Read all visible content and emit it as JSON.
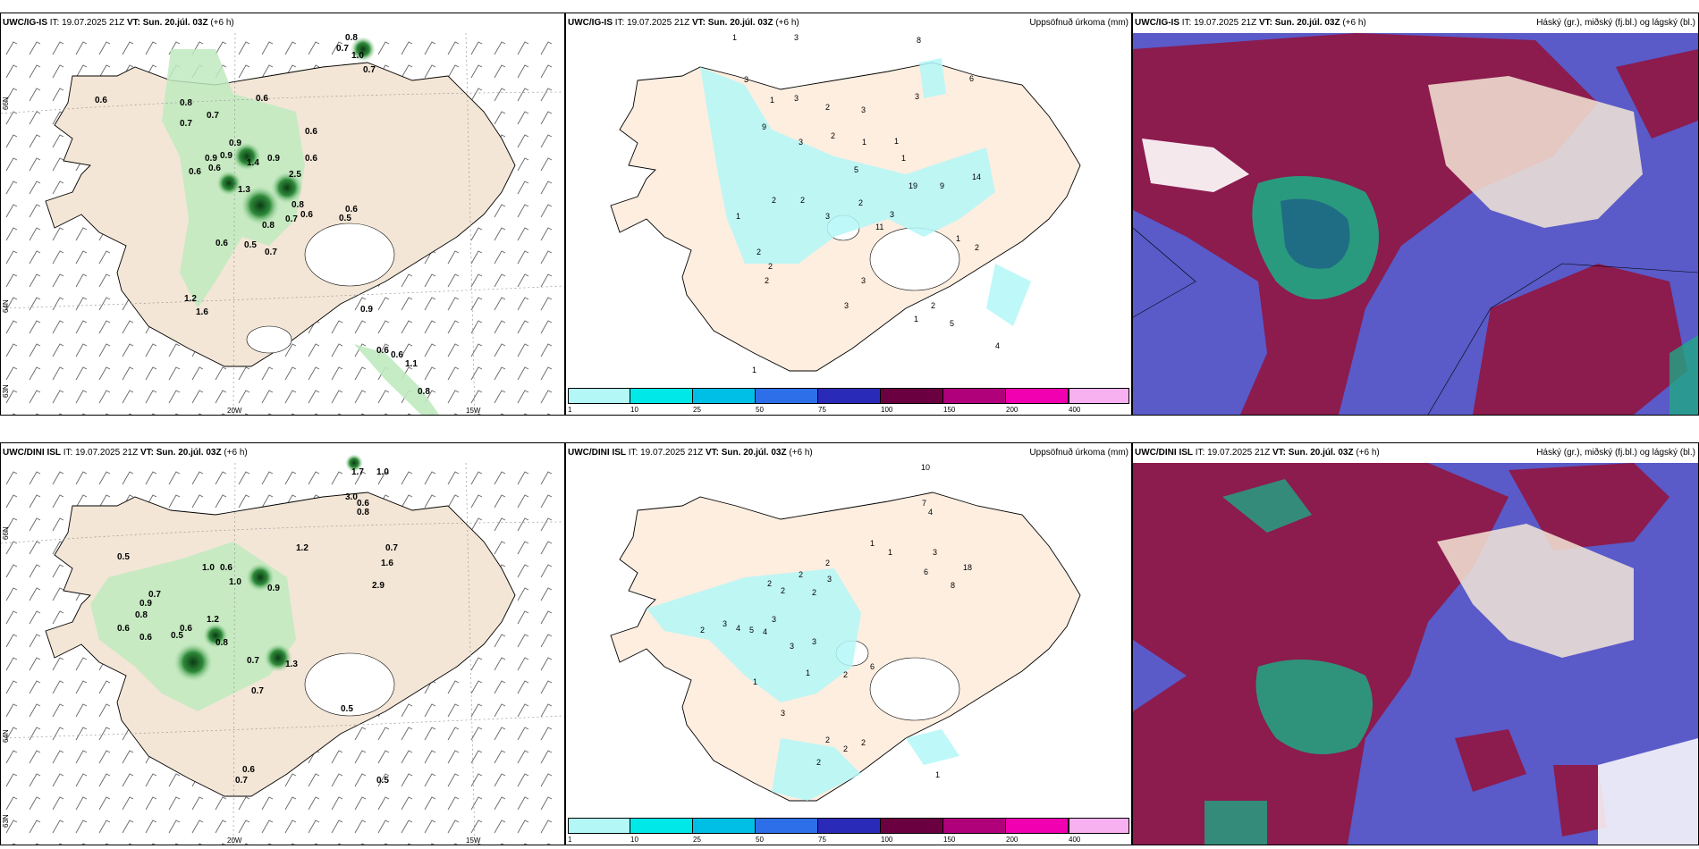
{
  "rows": [
    {
      "model": "UWC/IG-IS",
      "it_label": "IT:",
      "it_value": "19.07.2025 21Z",
      "vt_label": "VT:",
      "vt_value": "Sun. 20.júl. 03Z",
      "lead": "(+6 h)"
    },
    {
      "model": "UWC/DINI ISL",
      "it_label": "IT:",
      "it_value": "19.07.2025 21Z",
      "vt_label": "VT:",
      "vt_value": "Sun. 20.júl. 03Z",
      "lead": "(+6 h)"
    }
  ],
  "precip_title": "Uppsöfnuð úrkoma (mm)",
  "cloud_title": "Háský (gr.), miðský (fj.bl.) og lágský (bl.)",
  "axes": {
    "lon_20": "20W",
    "lon_15": "15W",
    "lat_66": "66N",
    "lat_64": "64N",
    "lat_63": "63N"
  },
  "colorbar": {
    "ticks": [
      "1",
      "10",
      "25",
      "50",
      "75",
      "100",
      "150",
      "200",
      "400"
    ],
    "colors": [
      "#b3f7f7",
      "#00e8e8",
      "#00bfe6",
      "#2c6fe8",
      "#2a2ab8",
      "#6b0040",
      "#b0007a",
      "#f000b0",
      "#f7b0f0"
    ]
  },
  "top_green_labels": [
    "0.8",
    "0.7",
    "1.0",
    "0.7",
    "0.6",
    "0.8",
    "0.6",
    "0.7",
    "0.7",
    "0.6",
    "0.6",
    "0.9",
    "0.9",
    "0.9",
    "0.6",
    "1.4",
    "0.9",
    "0.6",
    "2.5",
    "1.3",
    "0.8",
    "0.7",
    "0.6",
    "0.6",
    "0.5",
    "0.6",
    "0.8",
    "0.5",
    "0.7",
    "1.2",
    "1.6",
    "0.9",
    "0.6",
    "0.6",
    "1.1",
    "0.8"
  ],
  "top_precip_labels": [
    "1",
    "3",
    "8",
    "3",
    "6",
    "1",
    "3",
    "2",
    "3",
    "1",
    "3",
    "9",
    "3",
    "2",
    "1",
    "1",
    "5",
    "19",
    "9",
    "14",
    "2",
    "2",
    "2",
    "3",
    "1",
    "11",
    "3",
    "2",
    "2",
    "1",
    "2",
    "2",
    "3",
    "3",
    "1",
    "2",
    "5",
    "4",
    "1"
  ],
  "bot_green_labels": [
    "1.7",
    "1.0",
    "3.0",
    "0.6",
    "0.8",
    "0.5",
    "1.0",
    "0.6",
    "1.2",
    "0.7",
    "1.6",
    "2.9",
    "0.7",
    "0.9",
    "1.0",
    "0.9",
    "0.8",
    "0.6",
    "0.6",
    "0.5",
    "0.6",
    "1.3",
    "0.7",
    "0.8",
    "1.2",
    "0.5",
    "0.7",
    "0.7",
    "0.6",
    "0.5"
  ],
  "bot_precip_labels": [
    "10",
    "7",
    "4",
    "1",
    "1",
    "3",
    "18",
    "6",
    "8",
    "2",
    "2",
    "3",
    "2",
    "2",
    "2",
    "3",
    "4",
    "5",
    "4",
    "3",
    "2",
    "3",
    "3",
    "6",
    "1",
    "1",
    "2",
    "3",
    "2",
    "2",
    "2",
    "2",
    "1"
  ]
}
